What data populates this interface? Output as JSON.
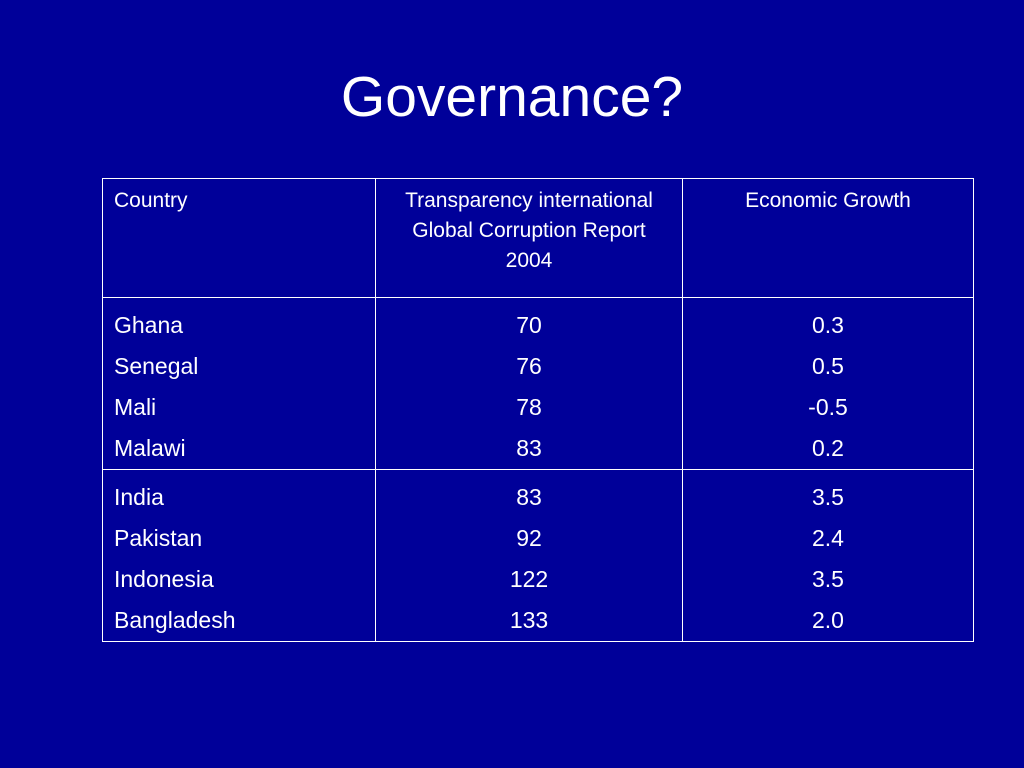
{
  "slide": {
    "title": "Governance?",
    "background_color": "#000099",
    "text_color": "#ffffff"
  },
  "table": {
    "headers": [
      "Country",
      "Transparency international Global Corruption Report 2004",
      "Economic Growth"
    ],
    "row_groups": [
      {
        "countries": [
          "Ghana",
          "Senegal",
          "Mali",
          "Malawi"
        ],
        "transparency": [
          "70",
          "76",
          "78",
          "83"
        ],
        "growth": [
          "0.3",
          "0.5",
          "-0.5",
          "0.2"
        ]
      },
      {
        "countries": [
          "India",
          "Pakistan",
          "Indonesia",
          "Bangladesh"
        ],
        "transparency": [
          "83",
          "92",
          "122",
          "133"
        ],
        "growth": [
          "3.5",
          "2.4",
          "3.5",
          "2.0"
        ]
      }
    ]
  }
}
